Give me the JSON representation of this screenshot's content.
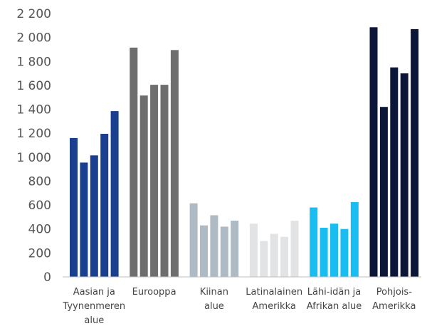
{
  "chart_data": {
    "type": "bar",
    "ylim": [
      0,
      2200
    ],
    "y_ticks": [
      "0",
      "200",
      "400",
      "600",
      "800",
      "1 000",
      "1 200",
      "1 400",
      "1 600",
      "1 800",
      "2 000",
      "2 200"
    ],
    "grid": false,
    "categories": [
      {
        "label": [
          "Aasian ja",
          "Tyynenmeren",
          "alue"
        ],
        "color": "#1a3f8f",
        "values": [
          1160,
          955,
          1015,
          1195,
          1385
        ]
      },
      {
        "label": [
          "Eurooppa"
        ],
        "color": "#6e6e6e",
        "values": [
          1915,
          1515,
          1605,
          1605,
          1895
        ]
      },
      {
        "label": [
          "Kiinan",
          "alue"
        ],
        "color": "#aebbc4",
        "values": [
          615,
          430,
          515,
          420,
          470
        ]
      },
      {
        "label": [
          "Latinalainen",
          "Amerikka"
        ],
        "color": "#e2e3e5",
        "values": [
          445,
          300,
          360,
          335,
          470
        ]
      },
      {
        "label": [
          "Lähi-idän ja",
          "Afrikan alue"
        ],
        "color": "#19bdf2",
        "values": [
          580,
          410,
          445,
          400,
          625
        ]
      },
      {
        "label": [
          "Pohjois-",
          "Amerikka"
        ],
        "color": "#0b1638",
        "values": [
          2085,
          1420,
          1750,
          1700,
          2070
        ]
      }
    ]
  }
}
